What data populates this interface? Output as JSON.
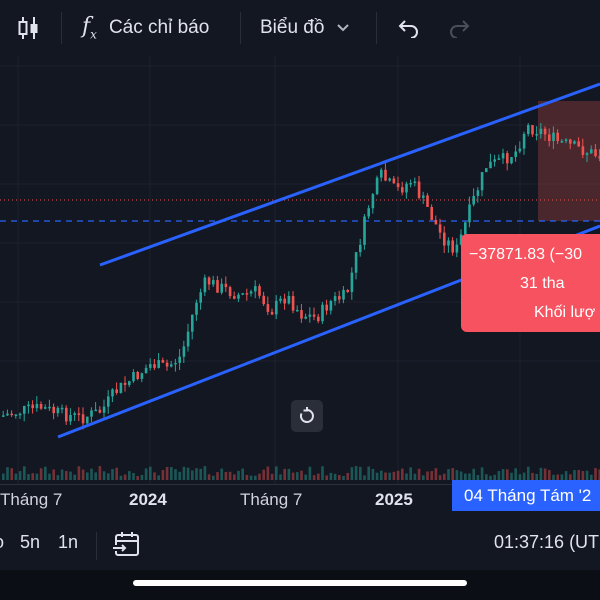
{
  "toolbar": {
    "indicators_label": "Các chỉ báo",
    "chart_type_label": "Biểu đồ"
  },
  "time_axis": {
    "ticks": [
      "Tháng 7",
      "2024",
      "Tháng 7",
      "2025"
    ],
    "crosshair_label": "04 Tháng Tám '2"
  },
  "tooltip": {
    "change": "−37871.83 (−30",
    "bars": "31 tha",
    "volume": "Khối lượ"
  },
  "bottombar": {
    "range_partial": "o",
    "range_5y": "5n",
    "range_1y": "1n",
    "clock": "01:37:16 (UT"
  },
  "colors": {
    "background": "#131722",
    "up": "#26a69a",
    "down": "#ef5350",
    "trendline": "#2962ff",
    "tooltip": "#f7525f"
  },
  "icons": {
    "candles": "candlestick-icon",
    "indicators": "fx-icon",
    "chart_type": "chevron-down-icon",
    "undo": "undo-icon",
    "redo": "redo-icon",
    "goto_date": "calendar-goto-icon",
    "reset": "reset-icon"
  }
}
